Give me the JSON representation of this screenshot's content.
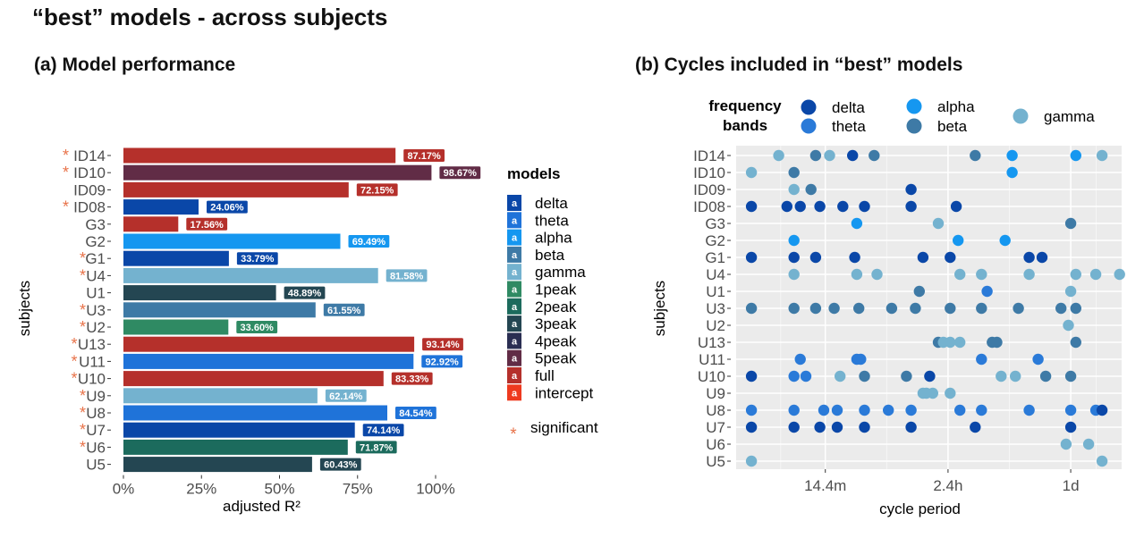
{
  "page_title": "“best” models - across subjects",
  "panel_a_title": "(a) Model performance",
  "panel_b_title": "(b) Cycles included in “best” models",
  "chart_data": [
    {
      "type": "bar",
      "orientation": "horizontal",
      "title": "(a) Model performance",
      "xlabel": "adjusted R²",
      "ylabel": "subjects",
      "xlim": [
        0,
        1
      ],
      "xticks": [
        "0%",
        "25%",
        "50%",
        "75%",
        "100%"
      ],
      "grid": false,
      "legend_title": "models",
      "legend_position": "right",
      "legend_key_text": "a",
      "significance_label": "significant",
      "significance_marker": "*",
      "categories": [
        "ID14",
        "ID10",
        "ID09",
        "ID08",
        "G3",
        "G2",
        "G1",
        "U4",
        "U1",
        "U3",
        "U2",
        "U13",
        "U11",
        "U10",
        "U9",
        "U8",
        "U7",
        "U6",
        "U5"
      ],
      "values": [
        0.8717,
        0.9867,
        0.7215,
        0.2406,
        0.1756,
        0.6949,
        0.3379,
        0.8158,
        0.4889,
        0.6155,
        0.336,
        0.9314,
        0.9292,
        0.8333,
        0.6214,
        0.8454,
        0.7414,
        0.7187,
        0.6043
      ],
      "value_labels": [
        "87.17%",
        "98.67%",
        "72.15%",
        "24.06%",
        "17.56%",
        "69.49%",
        "33.79%",
        "81.58%",
        "48.89%",
        "61.55%",
        "33.60%",
        "93.14%",
        "92.92%",
        "83.33%",
        "62.14%",
        "84.54%",
        "74.14%",
        "71.87%",
        "60.43%"
      ],
      "models": [
        "full",
        "5peak",
        "full",
        "delta",
        "full",
        "alpha",
        "delta",
        "gamma",
        "3peak",
        "beta",
        "1peak",
        "full",
        "theta",
        "full",
        "gamma",
        "theta",
        "delta",
        "2peak",
        "3peak"
      ],
      "significant": [
        true,
        true,
        false,
        true,
        false,
        false,
        true,
        true,
        false,
        true,
        true,
        true,
        true,
        true,
        true,
        true,
        true,
        true,
        false
      ],
      "model_legend": [
        "delta",
        "theta",
        "alpha",
        "beta",
        "gamma",
        "1peak",
        "2peak",
        "3peak",
        "4peak",
        "5peak",
        "full",
        "intercept"
      ],
      "model_colors": {
        "delta": "#0a47a8",
        "theta": "#1f73d9",
        "alpha": "#1597f0",
        "beta": "#3e7aa6",
        "gamma": "#74b2cf",
        "1peak": "#2f8a63",
        "2peak": "#1c6b5d",
        "3peak": "#244652",
        "4peak": "#2a2e52",
        "5peak": "#612c46",
        "full": "#b5302b",
        "intercept": "#ee3a1f"
      },
      "significance_color": "#e8734a"
    },
    {
      "type": "scatter",
      "title": "(b) Cycles included in “best” models",
      "xlabel": "cycle period",
      "ylabel": "subjects",
      "xscale": "log",
      "xlim": [
        "2.7m",
        "2.6d"
      ],
      "xticks": [
        "14.4m",
        "2.4h",
        "1d"
      ],
      "grid": true,
      "legend_title": "frequency bands",
      "legend_position": "top",
      "bands": [
        "delta",
        "theta",
        "alpha",
        "beta",
        "gamma"
      ],
      "band_colors": {
        "delta": "#0a47a8",
        "theta": "#2a7ad8",
        "alpha": "#1597f0",
        "beta": "#3e7aa6",
        "gamma": "#74b2cf"
      },
      "categories": [
        "ID14",
        "ID10",
        "ID09",
        "ID08",
        "G3",
        "G2",
        "G1",
        "U4",
        "U1",
        "U3",
        "U2",
        "U13",
        "U11",
        "U10",
        "U9",
        "U8",
        "U7",
        "U6",
        "U5"
      ],
      "points": [
        {
          "subject": "ID14",
          "band": "gamma",
          "period": "6m"
        },
        {
          "subject": "ID14",
          "band": "beta",
          "period": "12m"
        },
        {
          "subject": "ID14",
          "band": "gamma",
          "period": "15.6m"
        },
        {
          "subject": "ID14",
          "band": "delta",
          "period": "24m"
        },
        {
          "subject": "ID14",
          "band": "beta",
          "period": "36m"
        },
        {
          "subject": "ID14",
          "band": "beta",
          "period": "4h"
        },
        {
          "subject": "ID14",
          "band": "alpha",
          "period": "8h"
        },
        {
          "subject": "ID14",
          "band": "alpha",
          "period": "1.1d"
        },
        {
          "subject": "ID14",
          "band": "gamma",
          "period": "1.8d"
        },
        {
          "subject": "ID10",
          "band": "gamma",
          "period": "3.6m"
        },
        {
          "subject": "ID10",
          "band": "beta",
          "period": "8m"
        },
        {
          "subject": "ID10",
          "band": "alpha",
          "period": "8h"
        },
        {
          "subject": "ID09",
          "band": "gamma",
          "period": "8m"
        },
        {
          "subject": "ID09",
          "band": "beta",
          "period": "11m"
        },
        {
          "subject": "ID09",
          "band": "delta",
          "period": "1.2h"
        },
        {
          "subject": "ID08",
          "band": "delta",
          "period": "3.6m"
        },
        {
          "subject": "ID08",
          "band": "delta",
          "period": "7m"
        },
        {
          "subject": "ID08",
          "band": "delta",
          "period": "9m"
        },
        {
          "subject": "ID08",
          "band": "delta",
          "period": "13m"
        },
        {
          "subject": "ID08",
          "band": "delta",
          "period": "20m"
        },
        {
          "subject": "ID08",
          "band": "delta",
          "period": "30m"
        },
        {
          "subject": "ID08",
          "band": "delta",
          "period": "1.2h"
        },
        {
          "subject": "ID08",
          "band": "delta",
          "period": "2.8h"
        },
        {
          "subject": "G3",
          "band": "alpha",
          "period": "26m"
        },
        {
          "subject": "G3",
          "band": "gamma",
          "period": "2h"
        },
        {
          "subject": "G3",
          "band": "beta",
          "period": "1d"
        },
        {
          "subject": "G2",
          "band": "alpha",
          "period": "8m"
        },
        {
          "subject": "G2",
          "band": "alpha",
          "period": "2.9h"
        },
        {
          "subject": "G2",
          "band": "alpha",
          "period": "7h"
        },
        {
          "subject": "G1",
          "band": "delta",
          "period": "3.6m"
        },
        {
          "subject": "G1",
          "band": "delta",
          "period": "8m"
        },
        {
          "subject": "G1",
          "band": "delta",
          "period": "12m"
        },
        {
          "subject": "G1",
          "band": "delta",
          "period": "25m"
        },
        {
          "subject": "G1",
          "band": "delta",
          "period": "1.5h"
        },
        {
          "subject": "G1",
          "band": "delta",
          "period": "2.5h"
        },
        {
          "subject": "G1",
          "band": "delta",
          "period": "11h"
        },
        {
          "subject": "G1",
          "band": "delta",
          "period": "14h"
        },
        {
          "subject": "U4",
          "band": "gamma",
          "period": "8m"
        },
        {
          "subject": "U4",
          "band": "gamma",
          "period": "26m"
        },
        {
          "subject": "U4",
          "band": "gamma",
          "period": "38m"
        },
        {
          "subject": "U4",
          "band": "gamma",
          "period": "3h"
        },
        {
          "subject": "U4",
          "band": "gamma",
          "period": "4.5h"
        },
        {
          "subject": "U4",
          "band": "gamma",
          "period": "11h"
        },
        {
          "subject": "U4",
          "band": "gamma",
          "period": "1.1d"
        },
        {
          "subject": "U4",
          "band": "gamma",
          "period": "1.6d"
        },
        {
          "subject": "U4",
          "band": "gamma",
          "period": "2.5d"
        },
        {
          "subject": "U1",
          "band": "beta",
          "period": "1.4h"
        },
        {
          "subject": "U1",
          "band": "theta",
          "period": "5h"
        },
        {
          "subject": "U1",
          "band": "gamma",
          "period": "1d"
        },
        {
          "subject": "U3",
          "band": "beta",
          "period": "3.6m"
        },
        {
          "subject": "U3",
          "band": "beta",
          "period": "8m"
        },
        {
          "subject": "U3",
          "band": "beta",
          "period": "12m"
        },
        {
          "subject": "U3",
          "band": "beta",
          "period": "17m"
        },
        {
          "subject": "U3",
          "band": "beta",
          "period": "27m"
        },
        {
          "subject": "U3",
          "band": "beta",
          "period": "50m"
        },
        {
          "subject": "U3",
          "band": "beta",
          "period": "1.3h"
        },
        {
          "subject": "U3",
          "band": "beta",
          "period": "2.5h"
        },
        {
          "subject": "U3",
          "band": "beta",
          "period": "4.5h"
        },
        {
          "subject": "U3",
          "band": "beta",
          "period": "9h"
        },
        {
          "subject": "U3",
          "band": "beta",
          "period": "20h"
        },
        {
          "subject": "U3",
          "band": "beta",
          "period": "1.1d"
        },
        {
          "subject": "U2",
          "band": "gamma",
          "period": "23h"
        },
        {
          "subject": "U13",
          "band": "beta",
          "period": "2h"
        },
        {
          "subject": "U13",
          "band": "gamma",
          "period": "2.2h"
        },
        {
          "subject": "U13",
          "band": "gamma",
          "period": "2.5h"
        },
        {
          "subject": "U13",
          "band": "gamma",
          "period": "3h"
        },
        {
          "subject": "U13",
          "band": "beta",
          "period": "5.5h"
        },
        {
          "subject": "U13",
          "band": "beta",
          "period": "6h"
        },
        {
          "subject": "U13",
          "band": "beta",
          "period": "1.1d"
        },
        {
          "subject": "U11",
          "band": "theta",
          "period": "9m"
        },
        {
          "subject": "U11",
          "band": "theta",
          "period": "26m"
        },
        {
          "subject": "U11",
          "band": "theta",
          "period": "28m"
        },
        {
          "subject": "U11",
          "band": "theta",
          "period": "4.5h"
        },
        {
          "subject": "U11",
          "band": "theta",
          "period": "13h"
        },
        {
          "subject": "U10",
          "band": "delta",
          "period": "3.6m"
        },
        {
          "subject": "U10",
          "band": "theta",
          "period": "8m"
        },
        {
          "subject": "U10",
          "band": "theta",
          "period": "10m"
        },
        {
          "subject": "U10",
          "band": "gamma",
          "period": "19m"
        },
        {
          "subject": "U10",
          "band": "beta",
          "period": "30m"
        },
        {
          "subject": "U10",
          "band": "beta",
          "period": "1.1h"
        },
        {
          "subject": "U10",
          "band": "delta",
          "period": "1.7h"
        },
        {
          "subject": "U10",
          "band": "gamma",
          "period": "6.5h"
        },
        {
          "subject": "U10",
          "band": "gamma",
          "period": "8.5h"
        },
        {
          "subject": "U10",
          "band": "beta",
          "period": "15h"
        },
        {
          "subject": "U10",
          "band": "beta",
          "period": "1d"
        },
        {
          "subject": "U9",
          "band": "gamma",
          "period": "1.5h"
        },
        {
          "subject": "U9",
          "band": "gamma",
          "period": "1.6h"
        },
        {
          "subject": "U9",
          "band": "gamma",
          "period": "1.8h"
        },
        {
          "subject": "U9",
          "band": "gamma",
          "period": "2.5h"
        },
        {
          "subject": "U8",
          "band": "theta",
          "period": "3.6m"
        },
        {
          "subject": "U8",
          "band": "theta",
          "period": "8m"
        },
        {
          "subject": "U8",
          "band": "theta",
          "period": "14m"
        },
        {
          "subject": "U8",
          "band": "theta",
          "period": "18m"
        },
        {
          "subject": "U8",
          "band": "theta",
          "period": "30m"
        },
        {
          "subject": "U8",
          "band": "theta",
          "period": "47m"
        },
        {
          "subject": "U8",
          "band": "theta",
          "period": "1.2h"
        },
        {
          "subject": "U8",
          "band": "theta",
          "period": "3h"
        },
        {
          "subject": "U8",
          "band": "theta",
          "period": "4.5h"
        },
        {
          "subject": "U8",
          "band": "theta",
          "period": "11h"
        },
        {
          "subject": "U8",
          "band": "theta",
          "period": "1d"
        },
        {
          "subject": "U8",
          "band": "theta",
          "period": "1.6d"
        },
        {
          "subject": "U8",
          "band": "delta",
          "period": "1.8d"
        },
        {
          "subject": "U7",
          "band": "delta",
          "period": "3.6m"
        },
        {
          "subject": "U7",
          "band": "delta",
          "period": "8m"
        },
        {
          "subject": "U7",
          "band": "delta",
          "period": "13m"
        },
        {
          "subject": "U7",
          "band": "delta",
          "period": "18m"
        },
        {
          "subject": "U7",
          "band": "delta",
          "period": "30m"
        },
        {
          "subject": "U7",
          "band": "delta",
          "period": "1.2h"
        },
        {
          "subject": "U7",
          "band": "delta",
          "period": "4h"
        },
        {
          "subject": "U7",
          "band": "delta",
          "period": "1d"
        },
        {
          "subject": "U6",
          "band": "gamma",
          "period": "22h"
        },
        {
          "subject": "U6",
          "band": "gamma",
          "period": "1.4d"
        },
        {
          "subject": "U5",
          "band": "gamma",
          "period": "3.6m"
        },
        {
          "subject": "U5",
          "band": "gamma",
          "period": "1.8d"
        }
      ]
    }
  ]
}
